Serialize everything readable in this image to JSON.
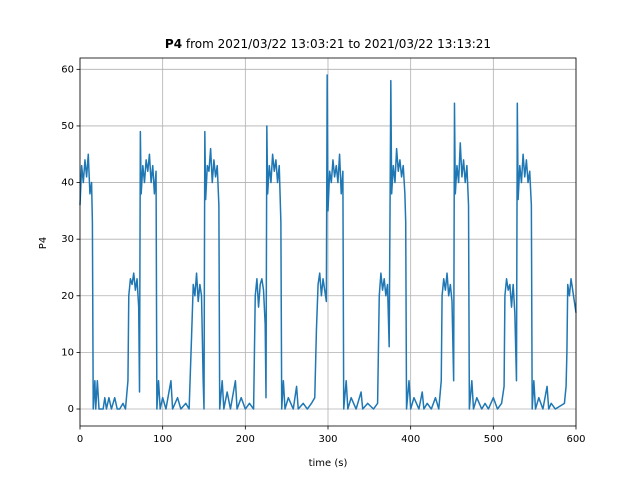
{
  "chart_data": {
    "type": "line",
    "title": {
      "bold": "P4",
      "rest": "from 2021/03/22 13:03:21 to 2021/03/22 13:13:21"
    },
    "x_label": "time (s)",
    "y_label": "P4",
    "color": "#1f77b4",
    "grid": true,
    "xlim": [
      0,
      600
    ],
    "xticks": [
      0,
      100,
      200,
      300,
      400,
      500,
      600
    ],
    "ylim": [
      -3,
      62
    ],
    "yticks": [
      0,
      10,
      20,
      30,
      40,
      50,
      60
    ],
    "x": [
      0,
      2,
      4,
      6,
      8,
      10,
      12,
      14,
      15,
      16,
      18,
      19,
      21,
      23,
      28,
      30,
      32,
      35,
      38,
      42,
      45,
      48,
      52,
      55,
      58,
      59,
      61,
      63,
      65,
      67,
      69,
      71,
      72,
      73,
      74,
      76,
      78,
      80,
      82,
      84,
      86,
      88,
      90,
      92,
      93,
      95,
      97,
      100,
      104,
      110,
      112,
      118,
      122,
      128,
      132,
      135,
      137,
      139,
      141,
      143,
      145,
      147,
      149,
      150,
      151,
      152,
      154,
      156,
      158,
      160,
      162,
      164,
      166,
      168,
      169,
      172,
      174,
      178,
      182,
      188,
      190,
      195,
      200,
      205,
      210,
      212,
      214,
      216,
      218,
      220,
      222,
      224,
      225,
      226,
      227,
      229,
      231,
      233,
      235,
      237,
      239,
      241,
      243,
      244,
      246,
      248,
      252,
      258,
      262,
      264,
      270,
      275,
      280,
      284,
      286,
      288,
      290,
      292,
      294,
      296,
      298,
      299,
      300,
      302,
      304,
      306,
      308,
      310,
      312,
      314,
      316,
      318,
      319,
      322,
      324,
      328,
      334,
      340,
      342,
      348,
      355,
      360,
      362,
      364,
      366,
      368,
      370,
      372,
      374,
      376,
      377,
      379,
      381,
      383,
      385,
      387,
      389,
      391,
      393,
      394,
      395,
      398,
      400,
      404,
      410,
      414,
      416,
      420,
      425,
      430,
      434,
      437,
      438,
      440,
      442,
      444,
      446,
      448,
      450,
      452,
      453,
      454,
      456,
      458,
      460,
      462,
      464,
      466,
      468,
      470,
      471,
      474,
      476,
      480,
      486,
      490,
      494,
      500,
      505,
      510,
      513,
      514,
      516,
      518,
      520,
      522,
      524,
      526,
      528,
      529,
      530,
      532,
      534,
      536,
      538,
      540,
      542,
      544,
      546,
      547,
      549,
      551,
      555,
      560,
      565,
      567,
      570,
      575,
      586,
      588,
      589,
      590,
      592,
      594,
      596,
      598,
      600
    ],
    "values": [
      36,
      43,
      40,
      44,
      41,
      45,
      38,
      40,
      33,
      0,
      5,
      0,
      5,
      0,
      0,
      2,
      0,
      2,
      0,
      2,
      0,
      0,
      1,
      0,
      5,
      20,
      23,
      22,
      24,
      21,
      23,
      18,
      3,
      49,
      38,
      43,
      40,
      44,
      42,
      45,
      40,
      43,
      38,
      42,
      0,
      5,
      0,
      2,
      0,
      5,
      0,
      2,
      0,
      1,
      0,
      13,
      22,
      20,
      24,
      19,
      22,
      20,
      5,
      0,
      49,
      37,
      43,
      42,
      46,
      40,
      44,
      41,
      43,
      36,
      0,
      5,
      0,
      3,
      0,
      5,
      0,
      2,
      0,
      1,
      0,
      20,
      23,
      18,
      22,
      23,
      21,
      15,
      2,
      50,
      38,
      43,
      40,
      45,
      42,
      44,
      40,
      43,
      33,
      0,
      5,
      0,
      2,
      0,
      4,
      0,
      1,
      0,
      1,
      2,
      14,
      22,
      24,
      20,
      23,
      21,
      19,
      59,
      35,
      42,
      40,
      44,
      41,
      43,
      40,
      45,
      38,
      42,
      0,
      5,
      0,
      2,
      0,
      3,
      0,
      1,
      0,
      1,
      20,
      24,
      21,
      23,
      20,
      22,
      11,
      58,
      38,
      43,
      40,
      46,
      42,
      44,
      41,
      43,
      38,
      33,
      0,
      5,
      0,
      2,
      0,
      3,
      0,
      1,
      0,
      2,
      0,
      5,
      20,
      23,
      21,
      24,
      20,
      22,
      19,
      5,
      54,
      38,
      43,
      40,
      47,
      41,
      44,
      40,
      43,
      36,
      0,
      5,
      0,
      2,
      0,
      1,
      0,
      2,
      0,
      1,
      4,
      20,
      23,
      21,
      22,
      18,
      22,
      17,
      5,
      54,
      37,
      43,
      40,
      45,
      41,
      44,
      40,
      42,
      36,
      0,
      5,
      0,
      2,
      0,
      4,
      0,
      1,
      0,
      1,
      4,
      10,
      22,
      20,
      23,
      21,
      19,
      17
    ]
  }
}
